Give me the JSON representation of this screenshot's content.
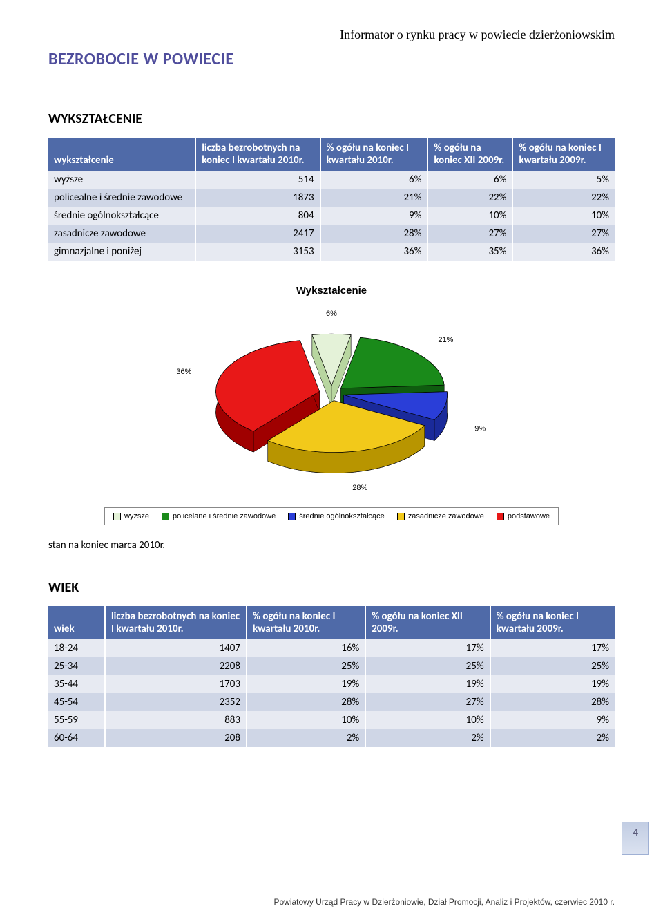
{
  "header": {
    "right_text": "Informator o rynku pracy w powiecie dzierżoniowskim",
    "main_heading": "BEZROBOCIE W POWIECIE",
    "main_heading_color": "#4f4d9c"
  },
  "section1": {
    "heading": "WYKSZTAŁCENIE",
    "columns": [
      "wykształcenie",
      "liczba bezrobotnych na koniec I kwartału 2010r.",
      "% ogółu na koniec I kwartału 2010r.",
      "% ogółu na koniec XII 2009r.",
      "% ogółu na koniec I  kwartału 2009r."
    ],
    "rows": [
      {
        "label": "wyższe",
        "v1": "514",
        "v2": "6%",
        "v3": "6%",
        "v4": "5%"
      },
      {
        "label": "policealne i średnie zawodowe",
        "v1": "1873",
        "v2": "21%",
        "v3": "22%",
        "v4": "22%"
      },
      {
        "label": "średnie ogólnokształcące",
        "v1": "804",
        "v2": "9%",
        "v3": "10%",
        "v4": "10%"
      },
      {
        "label": "zasadnicze zawodowe",
        "v1": "2417",
        "v2": "28%",
        "v3": "27%",
        "v4": "27%"
      },
      {
        "label": "gimnazjalne i poniżej",
        "v1": "3153",
        "v2": "36%",
        "v3": "35%",
        "v4": "36%"
      }
    ]
  },
  "chart": {
    "type": "pie-3d",
    "title": "Wykształcenie",
    "title_fontsize": 15,
    "background_color": "#ffffff",
    "slices": [
      {
        "label": "wyższe",
        "value": 6,
        "percent_label": "6%",
        "color_top": "#e4f2d8",
        "color_side": "#b8d6a0"
      },
      {
        "label": "policelane i średnie zawodowe",
        "value": 21,
        "percent_label": "21%",
        "color_top": "#1a8a1a",
        "color_side": "#0f5c0f"
      },
      {
        "label": "średnie ogólnokształcące",
        "value": 9,
        "percent_label": "9%",
        "color_top": "#2a3ed8",
        "color_side": "#1a2a9a"
      },
      {
        "label": "zasadnicze zawodowe",
        "value": 28,
        "percent_label": "28%",
        "color_top": "#f2c91a",
        "color_side": "#b89500"
      },
      {
        "label": "podstawowe",
        "value": 36,
        "percent_label": "36%",
        "color_top": "#e81818",
        "color_side": "#a00000"
      }
    ],
    "legend_border": "#888888",
    "label_fontsize": 11
  },
  "note": "stan na koniec marca 2010r.",
  "section2": {
    "heading": "WIEK",
    "columns": [
      "wiek",
      "liczba bezrobotnych na koniec I kwartału 2010r.",
      "% ogółu na koniec I kwartału 2010r.",
      "% ogółu na koniec XII 2009r.",
      "% ogółu na koniec I  kwartału 2009r."
    ],
    "rows": [
      {
        "label": "18-24",
        "v1": "1407",
        "v2": "16%",
        "v3": "17%",
        "v4": "17%"
      },
      {
        "label": "25-34",
        "v1": "2208",
        "v2": "25%",
        "v3": "25%",
        "v4": "25%"
      },
      {
        "label": "35-44",
        "v1": "1703",
        "v2": "19%",
        "v3": "19%",
        "v4": "19%"
      },
      {
        "label": "45-54",
        "v1": "2352",
        "v2": "28%",
        "v3": "27%",
        "v4": "28%"
      },
      {
        "label": "55-59",
        "v1": "883",
        "v2": "10%",
        "v3": "10%",
        "v4": "9%"
      },
      {
        "label": "60-64",
        "v1": "208",
        "v2": "2%",
        "v3": "2%",
        "v4": "2%"
      }
    ]
  },
  "page_number": "4",
  "footer": "Powiatowy Urząd Pracy w Dzierżoniowie, Dział Promocji, Analiz i Projektów,  czerwiec 2010 r."
}
